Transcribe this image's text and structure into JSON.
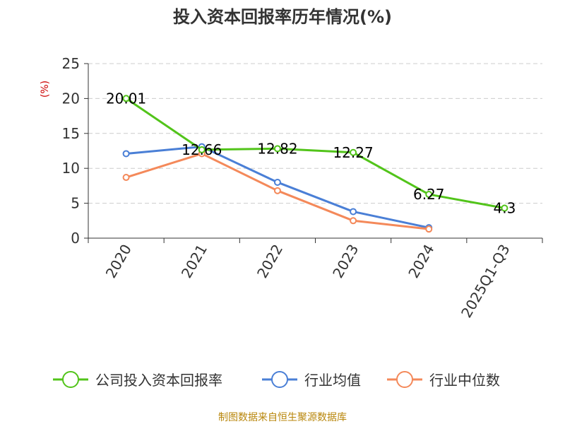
{
  "chart_data": {
    "type": "line",
    "title": "投入资本回报率历年情况(%)",
    "ylabel": "(%)",
    "xlabel": "",
    "categories": [
      "2020",
      "2021",
      "2022",
      "2023",
      "2024",
      "2025Q1-Q3"
    ],
    "ylim": [
      0,
      25
    ],
    "yticks": [
      0,
      5,
      10,
      15,
      20,
      25
    ],
    "grid": true,
    "legend_position": "bottom",
    "series": [
      {
        "name": "公司投入资本回报率",
        "color": "#52c41a",
        "values": [
          20.01,
          12.66,
          12.82,
          12.27,
          6.27,
          4.3
        ],
        "labels": [
          "20.01",
          "12.66",
          "12.82",
          "12.27",
          "6.27",
          "4.3"
        ]
      },
      {
        "name": "行业均值",
        "color": "#4a7fd6",
        "values": [
          12.1,
          13.1,
          8.0,
          3.8,
          1.5,
          null
        ]
      },
      {
        "name": "行业中位数",
        "color": "#f4895a",
        "values": [
          8.7,
          12.1,
          6.8,
          2.5,
          1.3,
          null
        ]
      }
    ],
    "source": "制图数据来自恒生聚源数据库"
  }
}
